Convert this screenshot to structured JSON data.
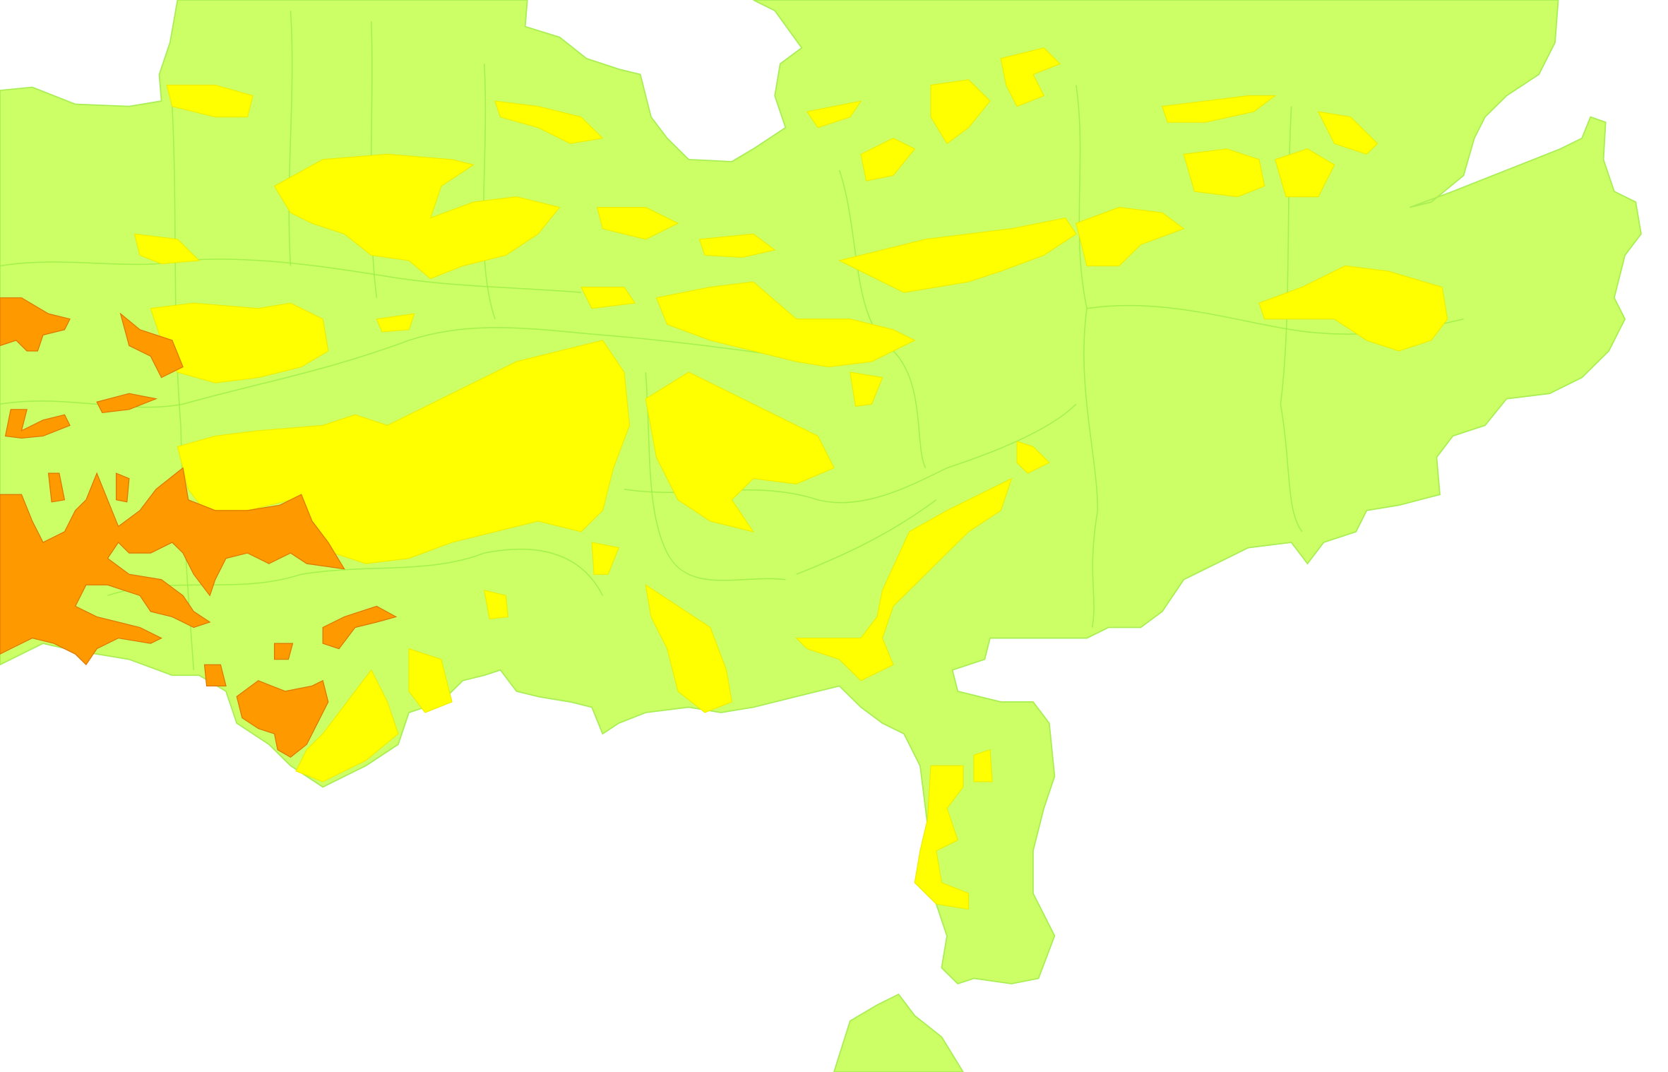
{
  "map": {
    "colors": {
      "background": "#ffffff",
      "base_class": "#ccff66",
      "middle_class": "#ffff00",
      "high_class": "#ff9900",
      "boundary_lines": "#99ee44"
    }
  }
}
